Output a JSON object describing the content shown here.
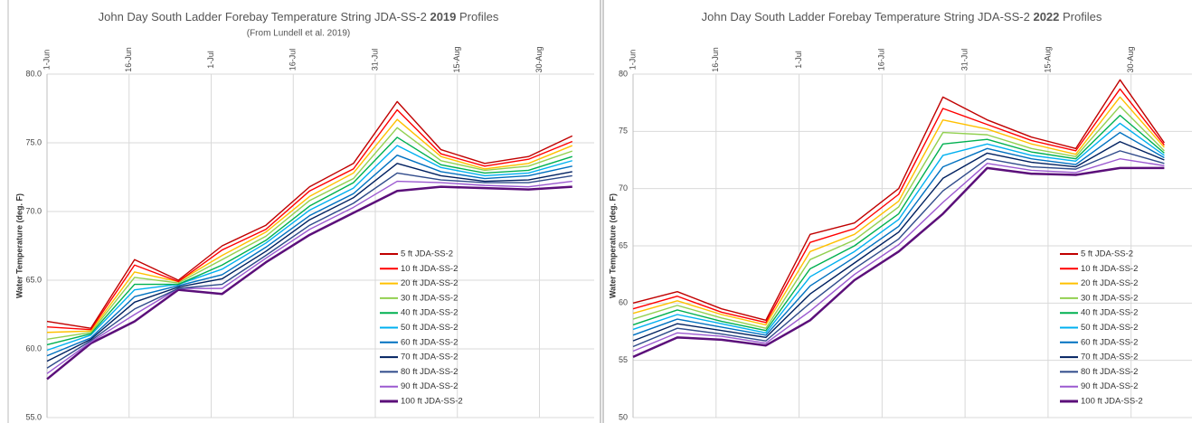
{
  "chart_data": [
    {
      "type": "line",
      "title": "John Day South Ladder Forebay Temperature String JDA-SS-2",
      "title_year": "2019",
      "title_suffix": "Profiles",
      "subtitle": "(From Lundell et al. 2019)",
      "y_label": "Water Temperature (deg. F)",
      "x": [
        "1-Jun",
        "9-Jun",
        "17-Jun",
        "25-Jun",
        "3-Jul",
        "11-Jul",
        "19-Jul",
        "27-Jul",
        "4-Aug",
        "12-Aug",
        "20-Aug",
        "28-Aug",
        "5-Sep"
      ],
      "xlim": [
        "1-Jun",
        "9-Sep"
      ],
      "xticks": [
        "1-Jun",
        "16-Jun",
        "1-Jul",
        "16-Jul",
        "31-Jul",
        "15-Aug",
        "30-Aug"
      ],
      "ylim": [
        55,
        80
      ],
      "yticks": [
        {
          "value": 55,
          "label": "55.0"
        },
        {
          "value": 60,
          "label": "60.0"
        },
        {
          "value": 65,
          "label": "65.0"
        },
        {
          "value": 70,
          "label": "70.0"
        },
        {
          "value": 75,
          "label": "75.0"
        },
        {
          "value": 80,
          "label": "80.0"
        }
      ],
      "grid": true,
      "series": [
        {
          "name": "5 ft JDA-SS-2",
          "color": "#c00000",
          "values": [
            62.0,
            61.5,
            66.5,
            65.0,
            67.5,
            69.0,
            71.8,
            73.5,
            78.0,
            74.5,
            73.5,
            74.0,
            75.5
          ]
        },
        {
          "name": "10 ft JDA-SS-2",
          "color": "#ff0000",
          "values": [
            61.6,
            61.4,
            66.1,
            64.9,
            67.2,
            68.7,
            71.5,
            73.1,
            77.4,
            74.2,
            73.3,
            73.8,
            75.1
          ]
        },
        {
          "name": "20 ft JDA-SS-2",
          "color": "#ffc000",
          "values": [
            61.2,
            61.3,
            65.6,
            64.9,
            66.8,
            68.5,
            71.1,
            72.8,
            76.7,
            74.0,
            73.1,
            73.5,
            74.8
          ]
        },
        {
          "name": "30 ft JDA-SS-2",
          "color": "#92d050",
          "values": [
            60.7,
            61.2,
            65.2,
            64.8,
            66.5,
            68.2,
            70.8,
            72.4,
            76.1,
            73.7,
            73.0,
            73.3,
            74.4
          ]
        },
        {
          "name": "40 ft JDA-SS-2",
          "color": "#00b050",
          "values": [
            60.3,
            61.1,
            64.7,
            64.7,
            66.1,
            67.9,
            70.4,
            72.1,
            75.4,
            73.4,
            72.8,
            73.0,
            74.0
          ]
        },
        {
          "name": "50 ft JDA-SS-2",
          "color": "#00b0f0",
          "values": [
            59.9,
            61.0,
            64.3,
            64.7,
            65.8,
            67.7,
            70.1,
            71.7,
            74.8,
            73.2,
            72.6,
            72.8,
            73.7
          ]
        },
        {
          "name": "60 ft JDA-SS-2",
          "color": "#0070c0",
          "values": [
            59.5,
            60.8,
            63.8,
            64.6,
            65.4,
            67.4,
            69.7,
            71.3,
            74.1,
            72.9,
            72.4,
            72.6,
            73.3
          ]
        },
        {
          "name": "70 ft JDA-SS-2",
          "color": "#002060",
          "values": [
            59.1,
            60.7,
            63.4,
            64.5,
            65.1,
            67.1,
            69.4,
            71.0,
            73.5,
            72.6,
            72.2,
            72.3,
            72.9
          ]
        },
        {
          "name": "80 ft JDA-SS-2",
          "color": "#2f4a8a",
          "values": [
            58.6,
            60.6,
            62.9,
            64.4,
            64.7,
            66.8,
            69.0,
            70.6,
            72.8,
            72.3,
            72.1,
            72.1,
            72.6
          ]
        },
        {
          "name": "90 ft JDA-SS-2",
          "color": "#9b59d0",
          "values": [
            58.2,
            60.5,
            62.5,
            64.4,
            64.4,
            66.6,
            68.7,
            70.3,
            72.2,
            72.1,
            71.9,
            71.8,
            72.2
          ]
        },
        {
          "name": "100 ft JDA-SS-2",
          "color": "#5b0f7a",
          "values": [
            57.8,
            60.4,
            62.0,
            64.3,
            64.0,
            66.3,
            68.3,
            69.9,
            71.5,
            71.8,
            71.7,
            71.6,
            71.8
          ]
        }
      ]
    },
    {
      "type": "line",
      "title": "John Day South Ladder Forebay Temperature String JDA-SS-2",
      "title_year": "2022",
      "title_suffix": "Profiles",
      "y_label": "Water Temperature (deg. F)",
      "x": [
        "1-Jun",
        "9-Jun",
        "17-Jun",
        "25-Jun",
        "3-Jul",
        "11-Jul",
        "19-Jul",
        "27-Jul",
        "4-Aug",
        "12-Aug",
        "20-Aug",
        "28-Aug",
        "5-Sep"
      ],
      "xlim": [
        "1-Jun",
        "10-Sep"
      ],
      "xticks": [
        "1-Jun",
        "16-Jun",
        "1-Jul",
        "16-Jul",
        "31-Jul",
        "15-Aug",
        "30-Aug"
      ],
      "ylim": [
        50,
        80
      ],
      "yticks": [
        50,
        55,
        60,
        65,
        70,
        75,
        80
      ],
      "grid": true,
      "series": [
        {
          "name": "5 ft JDA-SS-2",
          "color": "#c00000",
          "values": [
            60.0,
            61.0,
            59.5,
            58.5,
            66.0,
            67.0,
            70.0,
            78.0,
            76.0,
            74.5,
            73.5,
            79.5,
            74.0
          ]
        },
        {
          "name": "10 ft JDA-SS-2",
          "color": "#ff0000",
          "values": [
            59.5,
            60.6,
            59.2,
            58.3,
            65.3,
            66.5,
            69.5,
            77.0,
            75.6,
            74.2,
            73.3,
            78.7,
            73.8
          ]
        },
        {
          "name": "20 ft JDA-SS-2",
          "color": "#ffc000",
          "values": [
            59.1,
            60.2,
            59.0,
            58.1,
            64.5,
            66.0,
            68.9,
            76.0,
            75.2,
            73.9,
            73.0,
            78.0,
            73.6
          ]
        },
        {
          "name": "30 ft JDA-SS-2",
          "color": "#92d050",
          "values": [
            58.6,
            59.8,
            58.7,
            57.8,
            63.8,
            65.5,
            68.4,
            74.9,
            74.7,
            73.5,
            72.8,
            77.2,
            73.3
          ]
        },
        {
          "name": "40 ft JDA-SS-2",
          "color": "#00b050",
          "values": [
            58.1,
            59.4,
            58.4,
            57.6,
            63.0,
            65.0,
            67.8,
            73.9,
            74.3,
            73.2,
            72.6,
            76.4,
            73.1
          ]
        },
        {
          "name": "50 ft JDA-SS-2",
          "color": "#00b0f0",
          "values": [
            57.7,
            59.0,
            58.2,
            57.4,
            62.3,
            64.5,
            67.3,
            72.9,
            73.9,
            72.9,
            72.4,
            75.7,
            72.9
          ]
        },
        {
          "name": "60 ft JDA-SS-2",
          "color": "#0070c0",
          "values": [
            57.2,
            58.6,
            57.9,
            57.2,
            61.5,
            64.0,
            66.7,
            71.9,
            73.5,
            72.6,
            72.1,
            74.9,
            72.7
          ]
        },
        {
          "name": "70 ft JDA-SS-2",
          "color": "#002060",
          "values": [
            56.7,
            58.2,
            57.6,
            57.0,
            60.8,
            63.5,
            66.2,
            70.9,
            73.1,
            72.3,
            71.9,
            74.1,
            72.5
          ]
        },
        {
          "name": "80 ft JDA-SS-2",
          "color": "#2f4a8a",
          "values": [
            56.2,
            57.8,
            57.3,
            56.7,
            60.0,
            63.0,
            65.6,
            69.8,
            72.6,
            71.9,
            71.7,
            73.3,
            72.2
          ]
        },
        {
          "name": "90 ft JDA-SS-2",
          "color": "#9b59d0",
          "values": [
            55.8,
            57.4,
            57.1,
            56.5,
            59.3,
            62.5,
            65.1,
            68.8,
            72.2,
            71.6,
            71.4,
            72.6,
            72.0
          ]
        },
        {
          "name": "100 ft JDA-SS-2",
          "color": "#5b0f7a",
          "values": [
            55.3,
            57.0,
            56.8,
            56.3,
            58.5,
            62.0,
            64.5,
            67.8,
            71.8,
            71.3,
            71.2,
            71.8,
            71.8
          ]
        }
      ]
    }
  ]
}
